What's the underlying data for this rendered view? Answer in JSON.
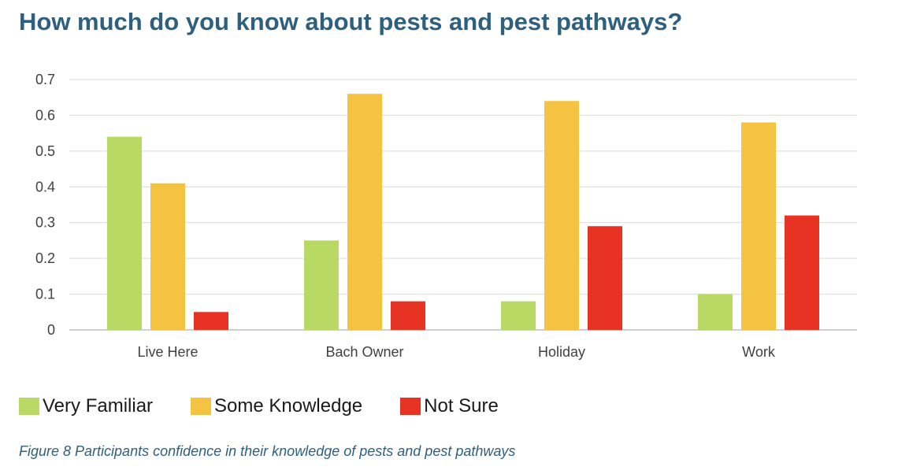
{
  "title": "How much do you know about pests and pest pathways?",
  "caption": "Figure 8 Participants confidence in their knowledge of pests and pest pathways",
  "chart_data": {
    "type": "bar",
    "title": "How much do you know about pests and pest pathways?",
    "xlabel": "",
    "ylabel": "",
    "categories": [
      "Live Here",
      "Bach Owner",
      "Holiday",
      "Work"
    ],
    "series": [
      {
        "name": "Very Familiar",
        "color": "#b8d963",
        "values": [
          0.54,
          0.25,
          0.08,
          0.1
        ]
      },
      {
        "name": "Some Knowledge",
        "color": "#f5c342",
        "values": [
          0.41,
          0.66,
          0.64,
          0.58
        ]
      },
      {
        "name": "Not Sure",
        "color": "#e63323",
        "values": [
          0.05,
          0.08,
          0.29,
          0.32
        ]
      }
    ],
    "ylim": [
      0,
      0.7
    ],
    "yticks": [
      "0",
      "0.1",
      "0.2",
      "0.3",
      "0.4",
      "0.5",
      "0.6",
      "0.7"
    ],
    "grid": true,
    "legend_position": "bottom-left"
  }
}
